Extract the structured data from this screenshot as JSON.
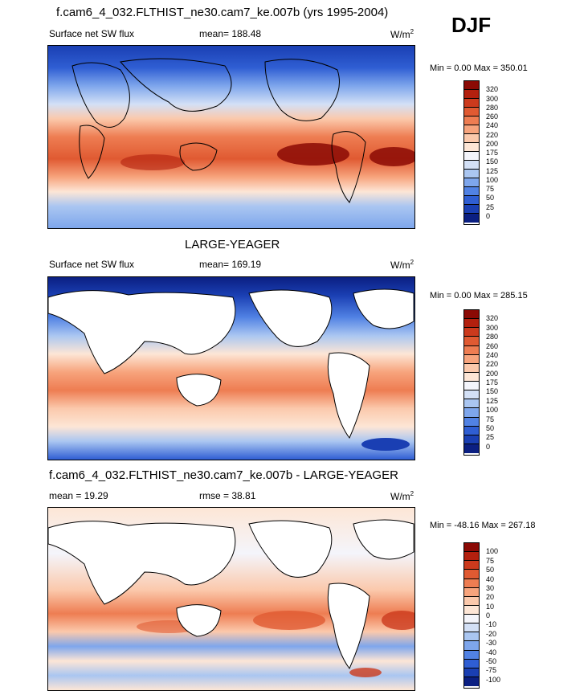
{
  "header": {
    "title": "f.cam6_4_032.FLTHIST_ne30.cam7_ke.007b (yrs 1995-2004)",
    "season": "DJF"
  },
  "panels": [
    {
      "id": "model",
      "title": "",
      "left_label": "Surface net SW flux",
      "center_label": "mean= 188.48",
      "units_base": "W/m",
      "units_sup": "2",
      "minmax": "Min =   0.00 Max = 350.01",
      "colorbar_ticks": [
        "320",
        "300",
        "280",
        "260",
        "240",
        "220",
        "200",
        "175",
        "150",
        "125",
        "100",
        "75",
        "50",
        "25",
        "0"
      ],
      "colorbar_colors": [
        "#8b0a05",
        "#b3200e",
        "#cc3a1d",
        "#e05a32",
        "#ee7d52",
        "#f7a47d",
        "#fbc9ac",
        "#fde6d6",
        "#f4f5fb",
        "#d3e0f6",
        "#aac6f1",
        "#7ea6ec",
        "#5182e4",
        "#2f5ed3",
        "#1a3fb3",
        "#0b1f82"
      ]
    },
    {
      "id": "obs",
      "title": "LARGE-YEAGER",
      "left_label": "Surface net SW flux",
      "center_label": "mean= 169.19",
      "units_base": "W/m",
      "units_sup": "2",
      "minmax": "Min =   0.00 Max = 285.15",
      "colorbar_ticks": [
        "320",
        "300",
        "280",
        "260",
        "240",
        "220",
        "200",
        "175",
        "150",
        "125",
        "100",
        "75",
        "50",
        "25",
        "0"
      ],
      "colorbar_colors": [
        "#8b0a05",
        "#b3200e",
        "#cc3a1d",
        "#e05a32",
        "#ee7d52",
        "#f7a47d",
        "#fbc9ac",
        "#fde6d6",
        "#f4f5fb",
        "#d3e0f6",
        "#aac6f1",
        "#7ea6ec",
        "#5182e4",
        "#2f5ed3",
        "#1a3fb3",
        "#0b1f82"
      ]
    },
    {
      "id": "diff",
      "title": "f.cam6_4_032.FLTHIST_ne30.cam7_ke.007b - LARGE-YEAGER",
      "left_label": "mean =  19.29",
      "center_label": "rmse =  38.81",
      "units_base": "W/m",
      "units_sup": "2",
      "minmax": "Min = -48.16 Max = 267.18",
      "colorbar_ticks": [
        "100",
        "75",
        "50",
        "40",
        "30",
        "20",
        "10",
        "0",
        "-10",
        "-20",
        "-30",
        "-40",
        "-50",
        "-75",
        "-100"
      ],
      "colorbar_colors": [
        "#8b0a05",
        "#b3200e",
        "#cc3a1d",
        "#e05a32",
        "#ee7d52",
        "#f7a47d",
        "#fbc9ac",
        "#fde6d6",
        "#f4f5fb",
        "#d3e0f6",
        "#aac6f1",
        "#7ea6ec",
        "#5182e4",
        "#2f5ed3",
        "#1a3fb3",
        "#0b1f82"
      ]
    }
  ]
}
